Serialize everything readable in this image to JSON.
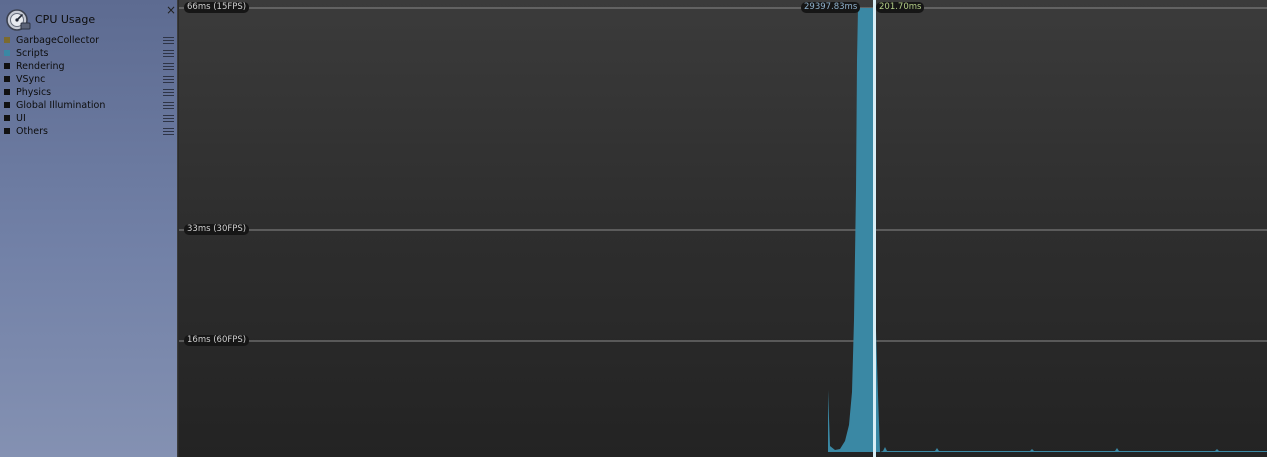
{
  "module": {
    "title": "CPU Usage",
    "icon": "cpu-profiler-icon",
    "close_glyph": "×"
  },
  "legend": [
    {
      "key": "garbage-collector",
      "label": "GarbageCollector",
      "color": "#7b6a2e"
    },
    {
      "key": "scripts",
      "label": "Scripts",
      "color": "#3a88a4"
    },
    {
      "key": "rendering",
      "label": "Rendering",
      "color": "#111111"
    },
    {
      "key": "vsync",
      "label": "VSync",
      "color": "#111111"
    },
    {
      "key": "physics",
      "label": "Physics",
      "color": "#111111"
    },
    {
      "key": "global-illumination",
      "label": "Global Illumination",
      "color": "#111111"
    },
    {
      "key": "ui",
      "label": "UI",
      "color": "#111111"
    },
    {
      "key": "others",
      "label": "Others",
      "color": "#111111"
    }
  ],
  "chart": {
    "grid_labels": {
      "ms66": "66ms (15FPS)",
      "ms33": "33ms (30FPS)",
      "ms16": "16ms (60FPS)"
    },
    "selected_frame": {
      "total_label": "29397.83ms",
      "scripts_label": "201.70ms"
    },
    "colors": {
      "scripts": "#3a88a4",
      "selection_line": "#d8eef6",
      "grid": "#8a8a8a"
    }
  },
  "chart_data": {
    "type": "area",
    "series": [
      {
        "name": "Scripts",
        "unit": "ms"
      }
    ],
    "gridlines_ms": [
      66,
      33,
      16
    ],
    "labels": [
      "66ms (15FPS)",
      "33ms (30FPS)",
      "16ms (60FPS)"
    ],
    "selected_frame_values": [
      "29397.83ms",
      "201.70ms"
    ]
  }
}
